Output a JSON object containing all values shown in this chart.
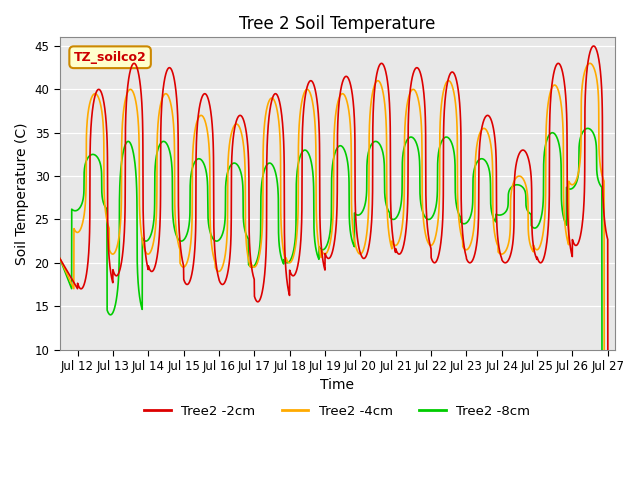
{
  "title": "Tree 2 Soil Temperature",
  "xlabel": "Time",
  "ylabel": "Soil Temperature (C)",
  "xlim_start": 11.5,
  "xlim_end": 27.2,
  "ylim": [
    10,
    46
  ],
  "yticks": [
    10,
    15,
    20,
    25,
    30,
    35,
    40,
    45
  ],
  "xtick_days": [
    12,
    13,
    14,
    15,
    16,
    17,
    18,
    19,
    20,
    21,
    22,
    23,
    24,
    25,
    26,
    27
  ],
  "xtick_labels": [
    "Jul 12",
    "Jul 13",
    "Jul 14",
    "Jul 15",
    "Jul 16",
    "Jul 17",
    "Jul 18",
    "Jul 19",
    "Jul 20",
    "Jul 21",
    "Jul 22",
    "Jul 23",
    "Jul 24",
    "Jul 25",
    "Jul 26",
    "Jul 27"
  ],
  "legend_labels": [
    "Tree2 -2cm",
    "Tree2 -4cm",
    "Tree2 -8cm"
  ],
  "legend_colors": [
    "#dd0000",
    "#ffaa00",
    "#00cc00"
  ],
  "annotation_text": "TZ_soilco2",
  "annotation_bg": "#ffffcc",
  "annotation_border": "#cc8800",
  "axes_bg": "#e8e8e8",
  "line_colors": [
    "#dd0000",
    "#ffaa00",
    "#00cc00"
  ],
  "line_width": 1.2,
  "title_fontsize": 12,
  "label_fontsize": 10,
  "tick_fontsize": 8.5,
  "legend_fontsize": 9.5,
  "annotation_fontsize": 9
}
